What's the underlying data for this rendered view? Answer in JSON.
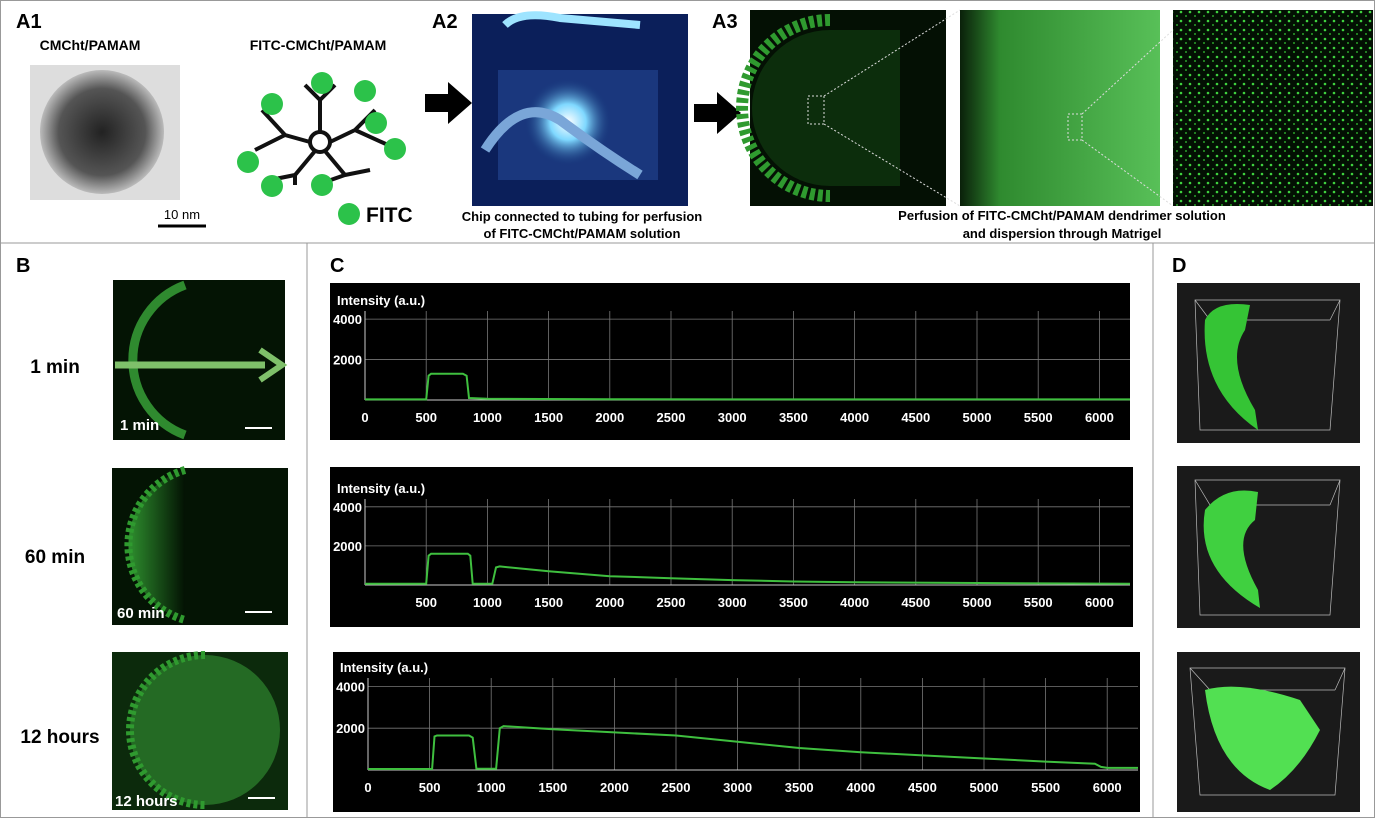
{
  "panels": {
    "a1": {
      "label": "A1",
      "left": "CMCht/PAMAM",
      "right": "FITC-CMCht/PAMAM",
      "scale": "10 nm",
      "legend": "FITC"
    },
    "a2": {
      "label": "A2",
      "caption": [
        "Chip connected  to tubing for perfusion",
        "of  FITC-CMCht/PAMAM solution"
      ]
    },
    "a3": {
      "label": "A3",
      "caption": [
        "Perfusion of FITC-CMCht/PAMAM dendrimer solution",
        "and dispersion through Matrigel"
      ]
    },
    "b": {
      "label": "B",
      "times": [
        "1 min",
        "60 min",
        "12 hours"
      ]
    },
    "c": {
      "label": "C"
    },
    "d": {
      "label": "D"
    }
  },
  "chart_data": [
    {
      "type": "line",
      "title": "Intensity (a.u.)",
      "color": "#3fbf3f",
      "x": [
        0,
        500,
        520,
        540,
        800,
        830,
        850,
        1000,
        2000,
        3000,
        4000,
        5000,
        6000,
        6250
      ],
      "values": [
        30,
        30,
        1200,
        1300,
        1300,
        1200,
        100,
        60,
        40,
        30,
        30,
        30,
        30,
        30
      ],
      "xlim": [
        0,
        6250
      ],
      "ylim": [
        0,
        4400
      ],
      "xticks": [
        0,
        500,
        1000,
        1500,
        2000,
        2500,
        3000,
        3500,
        4000,
        4500,
        5000,
        5500,
        6000
      ],
      "yticks": [
        2000,
        4000
      ],
      "grid": true
    },
    {
      "type": "line",
      "title": "Intensity (a.u.)",
      "color": "#3fbf3f",
      "x": [
        0,
        500,
        520,
        540,
        840,
        860,
        880,
        1040,
        1070,
        1100,
        1500,
        2000,
        2500,
        3000,
        3500,
        4000,
        5000,
        6000,
        6250
      ],
      "values": [
        60,
        60,
        1500,
        1600,
        1600,
        1500,
        60,
        60,
        900,
        950,
        700,
        450,
        350,
        250,
        180,
        140,
        100,
        70,
        60
      ],
      "xlim": [
        0,
        6250
      ],
      "ylim": [
        0,
        4400
      ],
      "xticks": [
        500,
        1000,
        1500,
        2000,
        2500,
        3000,
        3500,
        4000,
        4500,
        5000,
        5500,
        6000
      ],
      "yticks": [
        2000,
        4000
      ],
      "grid": true
    },
    {
      "type": "line",
      "title": "Intensity (a.u.)",
      "color": "#3fbf3f",
      "x": [
        0,
        520,
        540,
        560,
        820,
        850,
        880,
        1040,
        1070,
        1100,
        1500,
        2000,
        2500,
        3000,
        3500,
        4000,
        4500,
        5000,
        5500,
        5900,
        5950,
        6000,
        6250
      ],
      "values": [
        50,
        50,
        1600,
        1650,
        1650,
        1550,
        60,
        60,
        2000,
        2100,
        1950,
        1800,
        1650,
        1350,
        1050,
        850,
        700,
        550,
        400,
        300,
        150,
        100,
        100
      ],
      "xlim": [
        0,
        6250
      ],
      "ylim": [
        0,
        4400
      ],
      "xticks": [
        0,
        500,
        1000,
        1500,
        2000,
        2500,
        3000,
        3500,
        4000,
        4500,
        5000,
        5500,
        6000
      ],
      "yticks": [
        2000,
        4000
      ],
      "grid": true
    }
  ]
}
